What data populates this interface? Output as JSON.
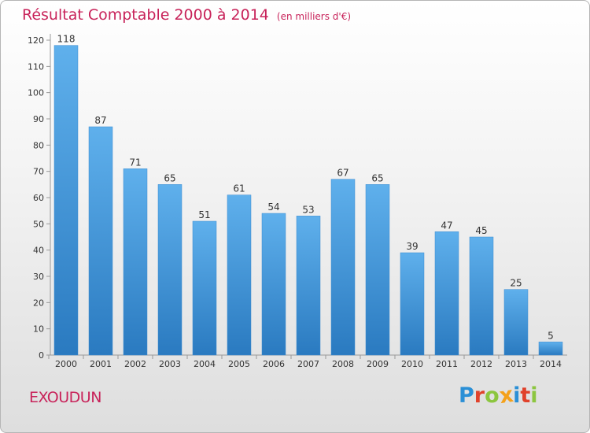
{
  "header": {
    "title": "Résultat Comptable 2000 à 2014",
    "subtitle": "(en milliers d'€)"
  },
  "town": "EXOUDUN",
  "logo": {
    "letters": [
      "P",
      "r",
      "o",
      "x",
      "i",
      "t",
      "i"
    ],
    "colors": [
      "#2a8fd6",
      "#e0422b",
      "#8cc63f",
      "#f4a11a",
      "#2a8fd6",
      "#e0422b",
      "#8cc63f"
    ]
  },
  "chart_data": {
    "type": "bar",
    "title": "Résultat Comptable 2000 à 2014",
    "xlabel": "",
    "ylabel": "",
    "categories": [
      "2000",
      "2001",
      "2002",
      "2003",
      "2004",
      "2005",
      "2006",
      "2007",
      "2008",
      "2009",
      "2010",
      "2011",
      "2012",
      "2013",
      "2014"
    ],
    "values": [
      118,
      87,
      71,
      65,
      51,
      61,
      54,
      53,
      67,
      65,
      39,
      47,
      45,
      25,
      5
    ],
    "value_labels": [
      "118",
      "87",
      "71",
      "65",
      "51",
      "61",
      "54",
      "53",
      "67",
      "65",
      "39",
      "47",
      "45",
      "25",
      "5"
    ],
    "ylim": [
      0,
      120
    ],
    "yticks": [
      0,
      10,
      20,
      30,
      40,
      50,
      60,
      70,
      80,
      90,
      100,
      110,
      120
    ],
    "grid": false,
    "bar_color_top": "#5fb0ec",
    "bar_color_bottom": "#2a7ac0"
  }
}
